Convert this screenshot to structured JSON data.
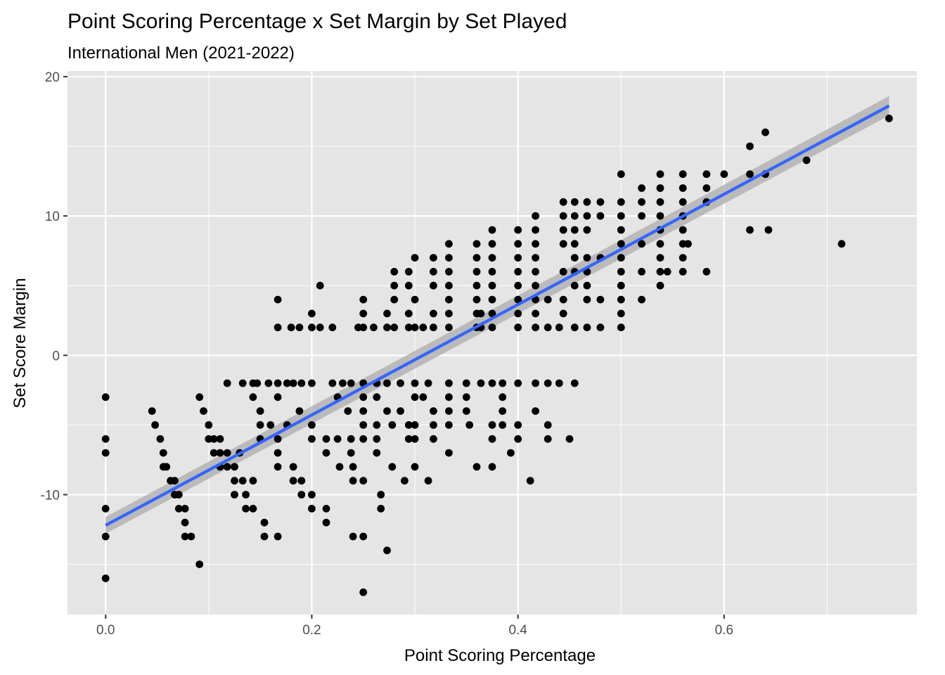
{
  "chart_data": {
    "type": "scatter",
    "title": "Point Scoring Percentage x Set Margin by Set Played",
    "subtitle": "International Men (2021-2022)",
    "xlabel": "Point Scoring Percentage",
    "ylabel": "Set Score Margin",
    "xlim": [
      -0.037,
      0.787
    ],
    "ylim": [
      -18.6,
      20.4
    ],
    "x_ticks": [
      {
        "value": 0.0,
        "label": "0.0"
      },
      {
        "value": 0.2,
        "label": "0.2"
      },
      {
        "value": 0.4,
        "label": "0.4"
      },
      {
        "value": 0.6,
        "label": "0.6"
      }
    ],
    "x_minor_ticks": [
      0.1,
      0.3,
      0.5,
      0.7
    ],
    "y_ticks": [
      {
        "value": -10,
        "label": "-10"
      },
      {
        "value": 0,
        "label": "0"
      },
      {
        "value": 10,
        "label": "10"
      },
      {
        "value": 20,
        "label": "20"
      }
    ],
    "y_minor_ticks": [
      -15,
      -5,
      5,
      15
    ],
    "grid": true,
    "legend": "none",
    "colors": {
      "panel": "#e5e5e5",
      "grid": "#ffffff",
      "points": "#000000",
      "fit_line": "#3366ff",
      "confidence_band": "#b3b3b3"
    },
    "fit": {
      "x": [
        0.0,
        0.76
      ],
      "y": [
        -12.2,
        17.9
      ],
      "band_halfwidth": [
        0.6,
        0.7
      ]
    },
    "points": [
      [
        0.0,
        -3
      ],
      [
        0.0,
        -6
      ],
      [
        0.0,
        -7
      ],
      [
        0.0,
        -11
      ],
      [
        0.0,
        -13
      ],
      [
        0.0,
        -16
      ],
      [
        0.045,
        -4
      ],
      [
        0.048,
        -5
      ],
      [
        0.053,
        -6
      ],
      [
        0.056,
        -7
      ],
      [
        0.056,
        -8
      ],
      [
        0.059,
        -8
      ],
      [
        0.063,
        -9
      ],
      [
        0.067,
        -9
      ],
      [
        0.067,
        -10
      ],
      [
        0.071,
        -10
      ],
      [
        0.071,
        -11
      ],
      [
        0.077,
        -11
      ],
      [
        0.077,
        -12
      ],
      [
        0.077,
        -13
      ],
      [
        0.083,
        -13
      ],
      [
        0.091,
        -3
      ],
      [
        0.091,
        -15
      ],
      [
        0.095,
        -4
      ],
      [
        0.1,
        -5
      ],
      [
        0.1,
        -6
      ],
      [
        0.105,
        -6
      ],
      [
        0.105,
        -7
      ],
      [
        0.111,
        -6
      ],
      [
        0.111,
        -7
      ],
      [
        0.111,
        -8
      ],
      [
        0.118,
        -2
      ],
      [
        0.118,
        -7
      ],
      [
        0.118,
        -8
      ],
      [
        0.125,
        -8
      ],
      [
        0.125,
        -9
      ],
      [
        0.125,
        -10
      ],
      [
        0.13,
        -7
      ],
      [
        0.133,
        -2
      ],
      [
        0.133,
        -9
      ],
      [
        0.136,
        -10
      ],
      [
        0.136,
        -11
      ],
      [
        0.143,
        -2
      ],
      [
        0.143,
        -3
      ],
      [
        0.143,
        -9
      ],
      [
        0.143,
        -11
      ],
      [
        0.147,
        -2
      ],
      [
        0.15,
        -4
      ],
      [
        0.15,
        -5
      ],
      [
        0.15,
        -6
      ],
      [
        0.154,
        -12
      ],
      [
        0.154,
        -13
      ],
      [
        0.158,
        -2
      ],
      [
        0.16,
        -5
      ],
      [
        0.167,
        -2
      ],
      [
        0.167,
        -3
      ],
      [
        0.167,
        -6
      ],
      [
        0.167,
        -7
      ],
      [
        0.167,
        -8
      ],
      [
        0.167,
        -13
      ],
      [
        0.167,
        2
      ],
      [
        0.167,
        4
      ],
      [
        0.176,
        -2
      ],
      [
        0.176,
        -5
      ],
      [
        0.18,
        2
      ],
      [
        0.182,
        -2
      ],
      [
        0.182,
        -8
      ],
      [
        0.182,
        -9
      ],
      [
        0.188,
        -4
      ],
      [
        0.188,
        2
      ],
      [
        0.19,
        -9
      ],
      [
        0.19,
        -10
      ],
      [
        0.19,
        -2
      ],
      [
        0.2,
        -2
      ],
      [
        0.2,
        -5
      ],
      [
        0.2,
        -6
      ],
      [
        0.2,
        -10
      ],
      [
        0.2,
        -11
      ],
      [
        0.2,
        2
      ],
      [
        0.2,
        3
      ],
      [
        0.208,
        2
      ],
      [
        0.208,
        5
      ],
      [
        0.214,
        -6
      ],
      [
        0.214,
        -7
      ],
      [
        0.214,
        -11
      ],
      [
        0.214,
        -12
      ],
      [
        0.22,
        -2
      ],
      [
        0.22,
        2
      ],
      [
        0.225,
        -3
      ],
      [
        0.225,
        -6
      ],
      [
        0.227,
        -8
      ],
      [
        0.23,
        -2
      ],
      [
        0.235,
        -4
      ],
      [
        0.238,
        -2
      ],
      [
        0.238,
        -6
      ],
      [
        0.238,
        -7
      ],
      [
        0.24,
        -8
      ],
      [
        0.24,
        -9
      ],
      [
        0.24,
        -13
      ],
      [
        0.245,
        2
      ],
      [
        0.25,
        -2
      ],
      [
        0.25,
        -3
      ],
      [
        0.25,
        -4
      ],
      [
        0.25,
        -5
      ],
      [
        0.25,
        -6
      ],
      [
        0.25,
        -9
      ],
      [
        0.25,
        -13
      ],
      [
        0.25,
        -17
      ],
      [
        0.25,
        2
      ],
      [
        0.25,
        3
      ],
      [
        0.25,
        4
      ],
      [
        0.26,
        2
      ],
      [
        0.263,
        -2
      ],
      [
        0.263,
        -3
      ],
      [
        0.263,
        -5
      ],
      [
        0.263,
        -6
      ],
      [
        0.263,
        -7
      ],
      [
        0.267,
        -10
      ],
      [
        0.267,
        -11
      ],
      [
        0.273,
        -2
      ],
      [
        0.273,
        -4
      ],
      [
        0.273,
        -14
      ],
      [
        0.273,
        2
      ],
      [
        0.273,
        3
      ],
      [
        0.278,
        -5
      ],
      [
        0.278,
        -8
      ],
      [
        0.28,
        2
      ],
      [
        0.28,
        4
      ],
      [
        0.28,
        5
      ],
      [
        0.28,
        6
      ],
      [
        0.286,
        -2
      ],
      [
        0.286,
        -4
      ],
      [
        0.29,
        -9
      ],
      [
        0.294,
        -5
      ],
      [
        0.294,
        -6
      ],
      [
        0.294,
        2
      ],
      [
        0.294,
        3
      ],
      [
        0.294,
        5
      ],
      [
        0.294,
        6
      ],
      [
        0.3,
        -2
      ],
      [
        0.3,
        -3
      ],
      [
        0.3,
        -5
      ],
      [
        0.3,
        -6
      ],
      [
        0.3,
        -8
      ],
      [
        0.3,
        2
      ],
      [
        0.3,
        4
      ],
      [
        0.3,
        7
      ],
      [
        0.308,
        -3
      ],
      [
        0.308,
        2
      ],
      [
        0.313,
        -9
      ],
      [
        0.313,
        -2
      ],
      [
        0.318,
        -4
      ],
      [
        0.318,
        -5
      ],
      [
        0.318,
        -6
      ],
      [
        0.318,
        2
      ],
      [
        0.318,
        3
      ],
      [
        0.318,
        5
      ],
      [
        0.318,
        6
      ],
      [
        0.318,
        7
      ],
      [
        0.333,
        -2
      ],
      [
        0.333,
        -3
      ],
      [
        0.333,
        -4
      ],
      [
        0.333,
        -5
      ],
      [
        0.333,
        -7
      ],
      [
        0.333,
        2
      ],
      [
        0.333,
        3
      ],
      [
        0.333,
        4
      ],
      [
        0.333,
        5
      ],
      [
        0.333,
        6
      ],
      [
        0.333,
        7
      ],
      [
        0.333,
        8
      ],
      [
        0.35,
        -2
      ],
      [
        0.35,
        -3
      ],
      [
        0.35,
        -4
      ],
      [
        0.353,
        -5
      ],
      [
        0.36,
        -8
      ],
      [
        0.36,
        2
      ],
      [
        0.36,
        3
      ],
      [
        0.36,
        4
      ],
      [
        0.36,
        5
      ],
      [
        0.36,
        6
      ],
      [
        0.36,
        7
      ],
      [
        0.36,
        8
      ],
      [
        0.364,
        -2
      ],
      [
        0.364,
        2
      ],
      [
        0.364,
        3
      ],
      [
        0.375,
        -2
      ],
      [
        0.375,
        -5
      ],
      [
        0.375,
        -6
      ],
      [
        0.375,
        -8
      ],
      [
        0.375,
        2
      ],
      [
        0.375,
        3
      ],
      [
        0.375,
        4
      ],
      [
        0.375,
        5
      ],
      [
        0.375,
        6
      ],
      [
        0.375,
        7
      ],
      [
        0.375,
        8
      ],
      [
        0.375,
        9
      ],
      [
        0.385,
        -2
      ],
      [
        0.385,
        -3
      ],
      [
        0.385,
        -4
      ],
      [
        0.385,
        -5
      ],
      [
        0.393,
        -7
      ],
      [
        0.4,
        -2
      ],
      [
        0.4,
        -5
      ],
      [
        0.4,
        -6
      ],
      [
        0.4,
        2
      ],
      [
        0.4,
        3
      ],
      [
        0.4,
        4
      ],
      [
        0.4,
        5
      ],
      [
        0.4,
        6
      ],
      [
        0.4,
        7
      ],
      [
        0.4,
        8
      ],
      [
        0.4,
        9
      ],
      [
        0.412,
        -9
      ],
      [
        0.417,
        -2
      ],
      [
        0.417,
        -4
      ],
      [
        0.417,
        2
      ],
      [
        0.417,
        3
      ],
      [
        0.417,
        4
      ],
      [
        0.417,
        5
      ],
      [
        0.417,
        6
      ],
      [
        0.417,
        7
      ],
      [
        0.417,
        8
      ],
      [
        0.417,
        9
      ],
      [
        0.417,
        10
      ],
      [
        0.429,
        -2
      ],
      [
        0.429,
        -5
      ],
      [
        0.429,
        -6
      ],
      [
        0.429,
        2
      ],
      [
        0.429,
        4
      ],
      [
        0.44,
        -2
      ],
      [
        0.44,
        2
      ],
      [
        0.444,
        3
      ],
      [
        0.444,
        4
      ],
      [
        0.444,
        6
      ],
      [
        0.444,
        8
      ],
      [
        0.444,
        9
      ],
      [
        0.444,
        10
      ],
      [
        0.444,
        11
      ],
      [
        0.45,
        -6
      ],
      [
        0.455,
        -2
      ],
      [
        0.455,
        2
      ],
      [
        0.455,
        5
      ],
      [
        0.455,
        6
      ],
      [
        0.455,
        7
      ],
      [
        0.455,
        8
      ],
      [
        0.455,
        9
      ],
      [
        0.455,
        10
      ],
      [
        0.455,
        11
      ],
      [
        0.467,
        2
      ],
      [
        0.467,
        4
      ],
      [
        0.467,
        5
      ],
      [
        0.467,
        6
      ],
      [
        0.467,
        7
      ],
      [
        0.467,
        9
      ],
      [
        0.467,
        10
      ],
      [
        0.467,
        11
      ],
      [
        0.48,
        2
      ],
      [
        0.48,
        4
      ],
      [
        0.48,
        7
      ],
      [
        0.48,
        10
      ],
      [
        0.48,
        11
      ],
      [
        0.5,
        2
      ],
      [
        0.5,
        3
      ],
      [
        0.5,
        4
      ],
      [
        0.5,
        5
      ],
      [
        0.5,
        6
      ],
      [
        0.5,
        7
      ],
      [
        0.5,
        8
      ],
      [
        0.5,
        9
      ],
      [
        0.5,
        10
      ],
      [
        0.5,
        11
      ],
      [
        0.5,
        13
      ],
      [
        0.52,
        4
      ],
      [
        0.52,
        6
      ],
      [
        0.52,
        8
      ],
      [
        0.52,
        10
      ],
      [
        0.52,
        11
      ],
      [
        0.52,
        12
      ],
      [
        0.538,
        5
      ],
      [
        0.538,
        6
      ],
      [
        0.538,
        7
      ],
      [
        0.538,
        8
      ],
      [
        0.538,
        9
      ],
      [
        0.538,
        10
      ],
      [
        0.538,
        11
      ],
      [
        0.538,
        12
      ],
      [
        0.538,
        13
      ],
      [
        0.545,
        6
      ],
      [
        0.56,
        6
      ],
      [
        0.56,
        7
      ],
      [
        0.56,
        8
      ],
      [
        0.56,
        9
      ],
      [
        0.56,
        10
      ],
      [
        0.56,
        11
      ],
      [
        0.56,
        12
      ],
      [
        0.56,
        13
      ],
      [
        0.565,
        8
      ],
      [
        0.583,
        6
      ],
      [
        0.583,
        11
      ],
      [
        0.583,
        12
      ],
      [
        0.583,
        13
      ],
      [
        0.6,
        13
      ],
      [
        0.625,
        9
      ],
      [
        0.625,
        13
      ],
      [
        0.625,
        15
      ],
      [
        0.64,
        13
      ],
      [
        0.64,
        16
      ],
      [
        0.643,
        9
      ],
      [
        0.68,
        14
      ],
      [
        0.714,
        8
      ],
      [
        0.76,
        17
      ]
    ]
  }
}
